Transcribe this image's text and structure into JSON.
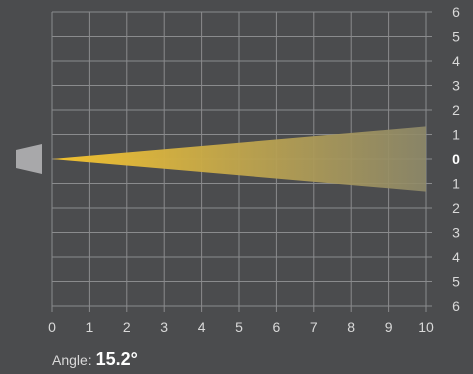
{
  "chart_data": {
    "type": "beam-spread",
    "x_ticks": [
      "0",
      "1",
      "2",
      "3",
      "4",
      "5",
      "6",
      "7",
      "8",
      "9",
      "10"
    ],
    "y_ticks": [
      "6",
      "5",
      "4",
      "3",
      "2",
      "1",
      "0",
      "1",
      "2",
      "3",
      "4",
      "5",
      "6"
    ],
    "xlim": [
      0,
      10
    ],
    "ylim": [
      -6,
      6
    ],
    "grid": true,
    "beam": {
      "origin": [
        0,
        0
      ],
      "distance": 10,
      "half_width_at_distance": 1.33,
      "color_near": "#f2c12e",
      "color_far": "#8f8a6a"
    },
    "source_icon": "light-source-icon"
  },
  "readout": {
    "label": "Angle:",
    "value": "15.2°"
  }
}
